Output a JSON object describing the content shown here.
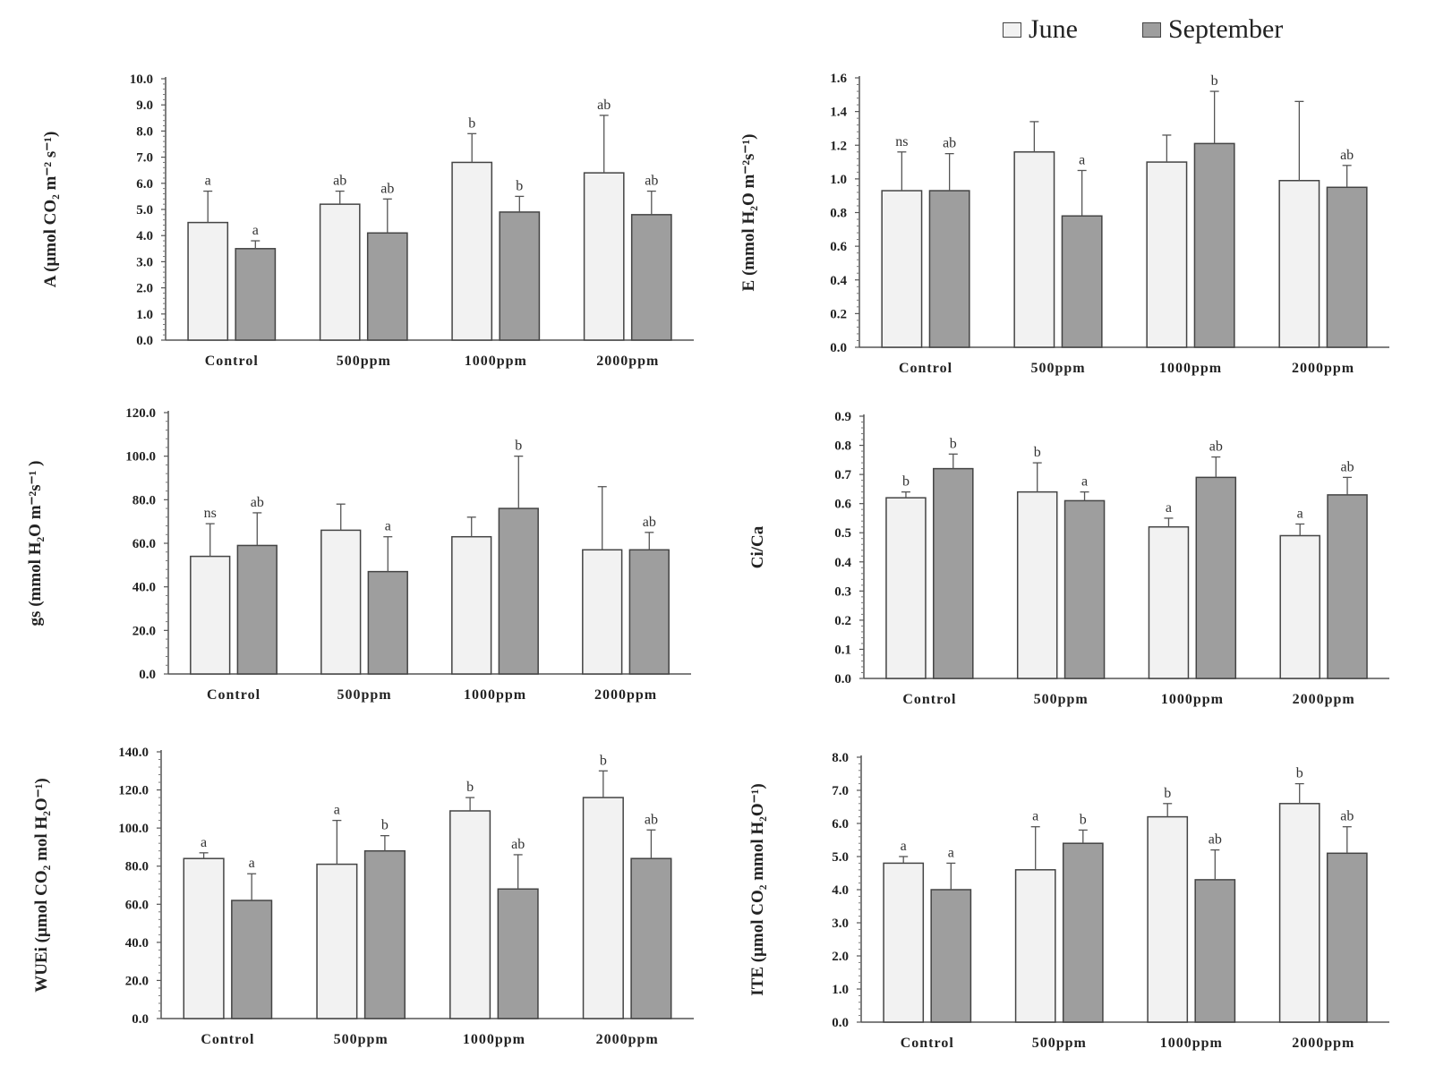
{
  "legend": {
    "series": [
      {
        "name": "June",
        "color": "#f2f2f2"
      },
      {
        "name": "September",
        "color": "#9e9e9e"
      }
    ]
  },
  "chart_data": [
    {
      "type": "bar",
      "ylabel": "A (μmol CO₂ m⁻² s⁻¹)",
      "categories": [
        "Control",
        "500ppm",
        "1000ppm",
        "2000ppm"
      ],
      "ylim": [
        0,
        10
      ],
      "yticks": [
        "0.0",
        "1.0",
        "2.0",
        "3.0",
        "4.0",
        "5.0",
        "6.0",
        "7.0",
        "8.0",
        "9.0",
        "10.0"
      ],
      "series": [
        {
          "name": "June",
          "values": [
            4.5,
            5.2,
            6.8,
            6.4
          ],
          "errors": [
            1.2,
            0.5,
            1.1,
            2.2
          ],
          "sig": [
            "a",
            "ab",
            "b",
            "ab"
          ]
        },
        {
          "name": "September",
          "values": [
            3.5,
            4.1,
            4.9,
            4.8
          ],
          "errors": [
            0.3,
            1.3,
            0.6,
            0.9
          ],
          "sig": [
            "a",
            "ab",
            "b",
            "ab"
          ]
        }
      ]
    },
    {
      "type": "bar",
      "ylabel": "E (mmol H₂O m⁻²s⁻¹)",
      "categories": [
        "Control",
        "500ppm",
        "1000ppm",
        "2000ppm"
      ],
      "ylim": [
        0,
        1.6
      ],
      "yticks": [
        "0.0",
        "0.2",
        "0.4",
        "0.6",
        "0.8",
        "1.0",
        "1.2",
        "1.4",
        "1.6"
      ],
      "series": [
        {
          "name": "June",
          "values": [
            0.93,
            1.16,
            1.1,
            0.99
          ],
          "errors": [
            0.23,
            0.18,
            0.16,
            0.47
          ],
          "sig": [
            "ns",
            "",
            "",
            ""
          ]
        },
        {
          "name": "September",
          "values": [
            0.93,
            0.78,
            1.21,
            0.95
          ],
          "errors": [
            0.22,
            0.27,
            0.31,
            0.13
          ],
          "sig": [
            "ab",
            "a",
            "b",
            "ab"
          ]
        }
      ]
    },
    {
      "type": "bar",
      "ylabel": "gs (mmol H₂O m⁻²s⁻¹ )",
      "categories": [
        "Control",
        "500ppm",
        "1000ppm",
        "2000ppm"
      ],
      "ylim": [
        0,
        120
      ],
      "yticks": [
        "0.0",
        "20.0",
        "40.0",
        "60.0",
        "80.0",
        "100.0",
        "120.0"
      ],
      "series": [
        {
          "name": "June",
          "values": [
            54,
            66,
            63,
            57
          ],
          "errors": [
            15,
            12,
            9,
            29
          ],
          "sig": [
            "ns",
            "",
            "",
            ""
          ]
        },
        {
          "name": "September",
          "values": [
            59,
            47,
            76,
            57
          ],
          "errors": [
            15,
            16,
            24,
            8
          ],
          "sig": [
            "ab",
            "a",
            "b",
            "ab"
          ]
        }
      ]
    },
    {
      "type": "bar",
      "ylabel": "Ci/Ca",
      "categories": [
        "Control",
        "500ppm",
        "1000ppm",
        "2000ppm"
      ],
      "ylim": [
        0,
        0.9
      ],
      "yticks": [
        "0.0",
        "0.1",
        "0.2",
        "0.3",
        "0.4",
        "0.5",
        "0.6",
        "0.7",
        "0.8",
        "0.9"
      ],
      "series": [
        {
          "name": "June",
          "values": [
            0.62,
            0.64,
            0.52,
            0.49
          ],
          "errors": [
            0.02,
            0.1,
            0.03,
            0.04
          ],
          "sig": [
            "b",
            "b",
            "a",
            "a"
          ]
        },
        {
          "name": "September",
          "values": [
            0.72,
            0.61,
            0.69,
            0.63
          ],
          "errors": [
            0.05,
            0.03,
            0.07,
            0.06
          ],
          "sig": [
            "b",
            "a",
            "ab",
            "ab"
          ]
        }
      ]
    },
    {
      "type": "bar",
      "ylabel": "WUEi (μmol CO₂ mol H₂O⁻¹)",
      "categories": [
        "Control",
        "500ppm",
        "1000ppm",
        "2000ppm"
      ],
      "ylim": [
        0,
        140
      ],
      "yticks": [
        "0.0",
        "20.0",
        "40.0",
        "60.0",
        "80.0",
        "100.0",
        "120.0",
        "140.0"
      ],
      "series": [
        {
          "name": "June",
          "values": [
            84,
            81,
            109,
            116
          ],
          "errors": [
            3,
            23,
            7,
            14
          ],
          "sig": [
            "a",
            "a",
            "b",
            "b"
          ]
        },
        {
          "name": "September",
          "values": [
            62,
            88,
            68,
            84
          ],
          "errors": [
            14,
            8,
            18,
            15
          ],
          "sig": [
            "a",
            "b",
            "ab",
            "ab"
          ]
        }
      ]
    },
    {
      "type": "bar",
      "ylabel": "ITE (μmol CO₂ mmol H₂O⁻¹)",
      "categories": [
        "Control",
        "500ppm",
        "1000ppm",
        "2000ppm"
      ],
      "ylim": [
        0,
        8
      ],
      "yticks": [
        "0.0",
        "1.0",
        "2.0",
        "3.0",
        "4.0",
        "5.0",
        "6.0",
        "7.0",
        "8.0"
      ],
      "series": [
        {
          "name": "June",
          "values": [
            4.8,
            4.6,
            6.2,
            6.6
          ],
          "errors": [
            0.2,
            1.3,
            0.4,
            0.6
          ],
          "sig": [
            "a",
            "a",
            "b",
            "b"
          ]
        },
        {
          "name": "September",
          "values": [
            4.0,
            5.4,
            4.3,
            5.1
          ],
          "errors": [
            0.8,
            0.4,
            0.9,
            0.8
          ],
          "sig": [
            "a",
            "b",
            "ab",
            "ab"
          ]
        }
      ]
    }
  ]
}
